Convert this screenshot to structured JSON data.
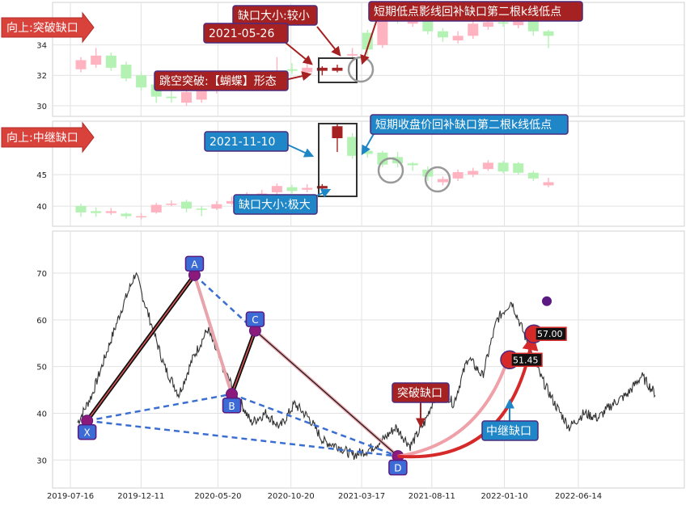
{
  "panels": {
    "top": {
      "tag": "向上:突破缺口",
      "y_ticks": [
        "30",
        "32",
        "34"
      ],
      "annotations": {
        "date": "2021-05-26",
        "size": "缺口大小:较小",
        "pattern": "跳空突破:【蝴蝶】形态",
        "support": "短期低点影线回补缺口第二根k线低点"
      }
    },
    "middle": {
      "tag": "向上:中继缺口",
      "y_ticks": [
        "40",
        "45"
      ],
      "annotations": {
        "date": "2021-11-10",
        "size": "缺口大小:极大",
        "support": "短期收盘价回补缺口第二根k线低点"
      }
    },
    "bottom": {
      "y_ticks": [
        "30",
        "40",
        "50",
        "60",
        "70"
      ],
      "points": [
        "X",
        "A",
        "B",
        "C",
        "D"
      ],
      "breakout_label": "突破缺口",
      "continuation_label": "中继缺口",
      "price_labels": [
        "51.45",
        "57.00"
      ]
    }
  },
  "x_ticks": [
    "2019-07-16",
    "2019-12-11",
    "2020-05-20",
    "2020-10-20",
    "2021-03-17",
    "2021-08-11",
    "2022-01-10",
    "2022-06-14"
  ],
  "chart_data": [
    {
      "type": "candlestick",
      "panel": "top",
      "ylim": [
        29.3,
        36.8
      ],
      "up_color": "#ffb3c0",
      "down_color": "#b3f2b3",
      "gap_up_color": "#a62121",
      "candles": [
        {
          "o": 32.4,
          "c": 33.0,
          "h": 33.2,
          "l": 32.2
        },
        {
          "o": 32.7,
          "c": 33.3,
          "h": 33.8,
          "l": 32.5
        },
        {
          "o": 33.3,
          "c": 32.5,
          "h": 33.5,
          "l": 32.3
        },
        {
          "o": 32.7,
          "c": 31.8,
          "h": 32.9,
          "l": 31.6
        },
        {
          "o": 32.0,
          "c": 31.2,
          "h": 32.2,
          "l": 31.0
        },
        {
          "o": 31.4,
          "c": 30.6,
          "h": 31.7,
          "l": 30.2
        },
        {
          "o": 30.6,
          "c": 30.5,
          "h": 31.0,
          "l": 30.2
        },
        {
          "o": 30.2,
          "c": 30.9,
          "h": 31.1,
          "l": 30.0
        },
        {
          "o": 30.4,
          "c": 31.0,
          "h": 31.2,
          "l": 30.2
        },
        {
          "o": 31.0,
          "c": 31.3,
          "h": 31.9,
          "l": 30.8
        },
        {
          "o": 31.2,
          "c": 31.6,
          "h": 32.2,
          "l": 31.0
        },
        {
          "o": 31.4,
          "c": 31.3,
          "h": 31.7,
          "l": 31.0
        },
        {
          "o": 31.5,
          "c": 31.9,
          "h": 32.1,
          "l": 31.2
        },
        {
          "o": 32.1,
          "c": 32.3,
          "h": 33.2,
          "l": 31.8
        },
        {
          "o": 32.4,
          "c": 32.3,
          "h": 32.8,
          "l": 32.1
        },
        {
          "o": 32.2,
          "c": 32.5,
          "h": 32.8,
          "l": 31.9
        },
        {
          "o": 32.5,
          "c": 32.3,
          "h": 32.6,
          "l": 32.0
        },
        {
          "o": 32.3,
          "c": 32.5,
          "h": 32.7,
          "l": 32.2
        },
        {
          "o": 33.3,
          "c": 33.4,
          "h": 33.8,
          "l": 32.9
        },
        {
          "o": 34.8,
          "c": 33.7,
          "h": 35.0,
          "l": 33.3
        },
        {
          "o": 34.0,
          "c": 35.8,
          "h": 36.2,
          "l": 33.8
        },
        {
          "o": 36.0,
          "c": 35.6,
          "h": 36.3,
          "l": 35.4
        },
        {
          "o": 35.4,
          "c": 36.2,
          "h": 36.5,
          "l": 35.2
        },
        {
          "o": 35.8,
          "c": 34.9,
          "h": 36.0,
          "l": 34.7
        },
        {
          "o": 34.9,
          "c": 34.5,
          "h": 35.1,
          "l": 34.2
        },
        {
          "o": 34.3,
          "c": 34.6,
          "h": 34.9,
          "l": 34.1
        },
        {
          "o": 34.6,
          "c": 35.4,
          "h": 35.7,
          "l": 34.4
        },
        {
          "o": 35.2,
          "c": 35.5,
          "h": 35.9,
          "l": 35.0
        },
        {
          "o": 35.5,
          "c": 35.4,
          "h": 35.7,
          "l": 35.2
        },
        {
          "o": 35.3,
          "c": 35.8,
          "h": 36.0,
          "l": 35.1
        },
        {
          "o": 36.0,
          "c": 34.9,
          "h": 36.3,
          "l": 34.6
        },
        {
          "o": 34.9,
          "c": 34.6,
          "h": 35.0,
          "l": 33.8
        }
      ]
    },
    {
      "type": "candlestick",
      "panel": "middle",
      "ylim": [
        36.8,
        53.5
      ],
      "up_color": "#ffb3c0",
      "down_color": "#b3f2b3",
      "gap_up_color": "#a62121",
      "candles": [
        {
          "o": 40.0,
          "c": 39.0,
          "h": 40.4,
          "l": 38.3
        },
        {
          "o": 39.2,
          "c": 38.9,
          "h": 39.8,
          "l": 38.3
        },
        {
          "o": 38.9,
          "c": 39.2,
          "h": 39.7,
          "l": 38.6
        },
        {
          "o": 38.8,
          "c": 38.4,
          "h": 39.0,
          "l": 38.0
        },
        {
          "o": 38.3,
          "c": 38.4,
          "h": 38.9,
          "l": 37.9
        },
        {
          "o": 39.0,
          "c": 40.2,
          "h": 40.5,
          "l": 38.8
        },
        {
          "o": 40.2,
          "c": 40.4,
          "h": 40.9,
          "l": 40.0
        },
        {
          "o": 40.7,
          "c": 39.6,
          "h": 41.0,
          "l": 39.0
        },
        {
          "o": 39.6,
          "c": 39.5,
          "h": 40.0,
          "l": 38.4
        },
        {
          "o": 39.6,
          "c": 40.3,
          "h": 40.8,
          "l": 39.4
        },
        {
          "o": 40.4,
          "c": 40.8,
          "h": 41.5,
          "l": 40.2
        },
        {
          "o": 41.0,
          "c": 41.4,
          "h": 42.2,
          "l": 40.7
        },
        {
          "o": 41.5,
          "c": 42.0,
          "h": 42.6,
          "l": 41.2
        },
        {
          "o": 42.2,
          "c": 43.2,
          "h": 43.6,
          "l": 41.8
        },
        {
          "o": 43.0,
          "c": 42.4,
          "h": 43.4,
          "l": 42.0
        },
        {
          "o": 42.6,
          "c": 42.9,
          "h": 43.5,
          "l": 42.2
        },
        {
          "o": 42.8,
          "c": 43.2,
          "h": 43.5,
          "l": 42.5
        },
        {
          "o": 50.8,
          "c": 52.7,
          "h": 53.0,
          "l": 48.6
        },
        {
          "o": 51.0,
          "c": 48.0,
          "h": 51.6,
          "l": 47.5
        },
        {
          "o": 48.8,
          "c": 48.3,
          "h": 49.3,
          "l": 47.7
        },
        {
          "o": 48.5,
          "c": 46.6,
          "h": 48.8,
          "l": 46.2
        },
        {
          "o": 47.8,
          "c": 46.8,
          "h": 48.6,
          "l": 46.2
        },
        {
          "o": 46.8,
          "c": 46.5,
          "h": 47.0,
          "l": 45.6
        },
        {
          "o": 45.8,
          "c": 44.7,
          "h": 46.3,
          "l": 44.0
        },
        {
          "o": 43.8,
          "c": 44.3,
          "h": 44.7,
          "l": 43.3
        },
        {
          "o": 44.4,
          "c": 45.4,
          "h": 45.8,
          "l": 44.0
        },
        {
          "o": 45.0,
          "c": 45.6,
          "h": 46.1,
          "l": 44.6
        },
        {
          "o": 45.9,
          "c": 46.9,
          "h": 47.3,
          "l": 45.6
        },
        {
          "o": 46.9,
          "c": 45.5,
          "h": 47.2,
          "l": 45.2
        },
        {
          "o": 46.8,
          "c": 45.3,
          "h": 47.0,
          "l": 45.0
        },
        {
          "o": 45.3,
          "c": 44.4,
          "h": 45.6,
          "l": 44.0
        },
        {
          "o": 43.3,
          "c": 43.8,
          "h": 44.5,
          "l": 43.0
        }
      ]
    },
    {
      "type": "line",
      "panel": "bottom",
      "ylim": [
        24,
        79
      ],
      "x_range": [
        "2019-07-16",
        "2022-11-15"
      ],
      "price_series": {
        "values": [
          38,
          44,
          53,
          62,
          70,
          60,
          50,
          44,
          52,
          58,
          50,
          44,
          38,
          40,
          37,
          42,
          39,
          34,
          33,
          31,
          32,
          34,
          37,
          33,
          38,
          46,
          42,
          52,
          48,
          60,
          64,
          56,
          48,
          42,
          37,
          40,
          39,
          42,
          44,
          48,
          44
        ]
      },
      "pattern": {
        "X": {
          "date": "2019-08-20",
          "value": 38.4
        },
        "A": {
          "date": "2020-04-01",
          "value": 69.6
        },
        "B": {
          "date": "2020-06-18",
          "value": 44.1
        },
        "C": {
          "date": "2020-08-06",
          "value": 57.7
        },
        "D": {
          "date": "2021-06-01",
          "value": 30.8
        }
      },
      "gap_markers": [
        {
          "label": "51.45",
          "value": 51.45
        },
        {
          "label": "57.00",
          "value": 57.0
        }
      ],
      "peak_marker": 64.0
    }
  ]
}
